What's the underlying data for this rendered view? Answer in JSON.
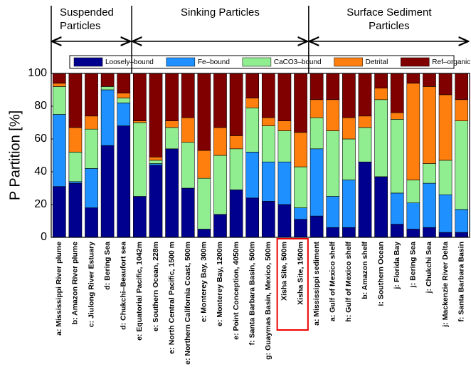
{
  "chart_data": {
    "type": "stacked-bar",
    "ylabel": "P Partition [%]",
    "sections": [
      [
        "Suspended",
        "Particles"
      ],
      [
        "Sinking Particles"
      ],
      [
        "Surface Sediment",
        "Particles"
      ]
    ],
    "categories": [
      "a: Mississippi River plume",
      "b: Amazon River plume",
      "c: Jiulong River Estuary",
      "d: Bering Sea",
      "d: Chukchi–Beaufort sea",
      "e: Equatorial Pacific, 1042m",
      "e: Southern Ocean, 228m",
      "e: North Central Pacific, 1500 m",
      "e: Northern California Coast, 500m",
      "e: Monterey Bay, 300m",
      "e: Monterey Bay, 1200m",
      "e: Point Conception, 4050m",
      "f: Santa Barbara Basin, 500m",
      "g: Guaymas Basin, Mexico, 500m",
      "Xisha Site, 500m",
      "Xisha Site, 1500m",
      "a: Mississippi sediment",
      "a: Gulf of Mexico shelf",
      "h: Gulf of Mexico shelf",
      "b: Amazon shelf",
      "i: Southern Ocean",
      "j: Florida Bay",
      "j: Bering Sea",
      "j: Chukchi Sea",
      "j: Mackenzie River Delta",
      "f: Santa Barbara Basin"
    ],
    "series": [
      {
        "name": "Loosely–bound",
        "color": "#00008f",
        "values": [
          31,
          33,
          18,
          56,
          68,
          25,
          44,
          54,
          30,
          5,
          14,
          29,
          24,
          22,
          20,
          11,
          13,
          6,
          6,
          46,
          37,
          8,
          5,
          6,
          3,
          3
        ]
      },
      {
        "name": "Fe–bound",
        "color": "#1e90ff",
        "values": [
          44,
          1,
          24,
          34,
          14,
          0,
          1,
          0,
          0,
          0,
          0,
          0,
          28,
          24,
          26,
          7,
          41,
          19,
          29,
          0,
          0,
          19,
          16,
          27,
          23,
          14
        ]
      },
      {
        "name": "CaCO3–bound",
        "color": "#90ee90",
        "values": [
          17,
          18,
          24,
          2,
          3,
          45,
          2,
          13,
          28,
          31,
          36,
          25,
          27,
          22,
          19,
          25,
          19,
          40,
          25,
          21,
          47,
          45,
          14,
          12,
          21,
          54
        ]
      },
      {
        "name": "Detrital",
        "color": "#ff7f0e",
        "values": [
          2,
          15,
          8,
          0,
          3,
          1,
          2,
          4,
          15,
          17,
          17,
          8,
          6,
          5,
          6,
          21,
          11,
          19,
          13,
          7,
          7,
          4,
          59,
          47,
          40,
          13
        ]
      },
      {
        "name": "Ref–organic",
        "color": "#800000",
        "values": [
          6,
          33,
          26,
          8,
          12,
          29,
          51,
          29,
          27,
          47,
          33,
          38,
          15,
          27,
          29,
          36,
          16,
          16,
          27,
          26,
          9,
          24,
          6,
          8,
          13,
          16
        ]
      }
    ],
    "ylim": [
      0,
      100
    ],
    "yticks": [
      0,
      20,
      40,
      60,
      80,
      100
    ]
  }
}
